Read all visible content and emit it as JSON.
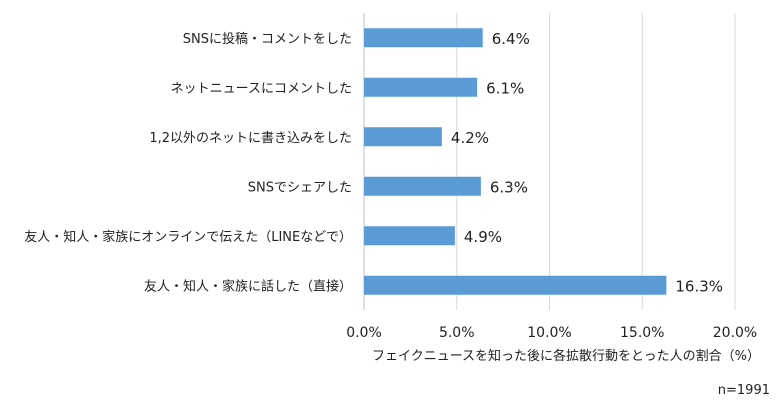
{
  "chart_data": {
    "type": "bar",
    "orientation": "horizontal",
    "categories": [
      "SNSに投稿・コメントをした",
      "ネットニュースにコメントした",
      "1,2以外のネットに書き込みをした",
      "SNSでシェアした",
      "友人・知人・家族にオンラインで伝えた（LINEなどで）",
      "友人・知人・家族に話した（直接）"
    ],
    "values": [
      6.4,
      6.1,
      4.2,
      6.3,
      4.9,
      16.3
    ],
    "value_labels": [
      "6.4%",
      "6.1%",
      "4.2%",
      "6.3%",
      "4.9%",
      "16.3%"
    ],
    "xlim": [
      0,
      20
    ],
    "xticks": [
      0,
      5,
      10,
      15,
      20
    ],
    "xtick_labels": [
      "0.0%",
      "5.0%",
      "10.0%",
      "15.0%",
      "20.0%"
    ],
    "xlabel": "フェイクニュースを知った後に各拡散行動をとった人の割合（%）",
    "grid": true,
    "bar_color": "#5b9bd5",
    "note": "n=1991"
  }
}
